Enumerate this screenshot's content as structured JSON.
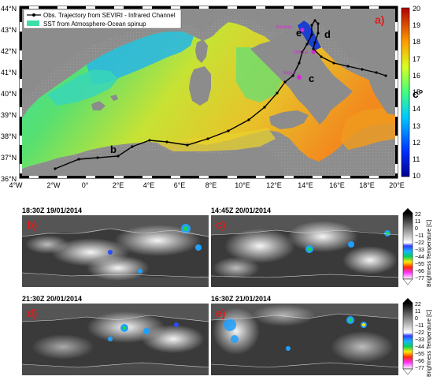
{
  "main_map": {
    "panel_letter": "a)",
    "legend": [
      {
        "label": "Obs. Trajectory from SEVIRI - Infrared Channel",
        "kind": "line-marker"
      },
      {
        "label": "SST from Atmosphere-Ocean spinup",
        "kind": "swatch"
      }
    ],
    "lat_ticks": [
      "44°N",
      "43°N",
      "42°N",
      "41°N",
      "40°N",
      "39°N",
      "38°N",
      "37°N",
      "36°N"
    ],
    "lon_ticks": [
      "4°W",
      "2°W",
      "0°",
      "2°E",
      "4°E",
      "6°E",
      "8°E",
      "10°E",
      "12°E",
      "14°E",
      "16°E",
      "18°E",
      "20°E"
    ],
    "colorbar": {
      "ticks": [
        "20",
        "19",
        "18",
        "17",
        "16",
        "15",
        "14",
        "13",
        "12",
        "11",
        "10"
      ],
      "unit": "c°"
    },
    "track_labels": [
      "b",
      "c",
      "d",
      "e"
    ],
    "cities": [
      "Ancona",
      "Ortona",
      "Napoli"
    ],
    "colors": {
      "sea_cold": "#1e5bd6",
      "sea_mid": "#39d39a",
      "sea_warm": "#e7e22c",
      "sea_hot": "#f08a1c",
      "land": "#8e8e8e",
      "track": "#000000",
      "city": "#d926d9",
      "panel_letter": "#e01c1c"
    }
  },
  "ir_panels": [
    {
      "timestamp": "18:30Z 19/01/2014",
      "letter": "b)"
    },
    {
      "timestamp": "14:45Z 20/01/2014",
      "letter": "c)"
    },
    {
      "timestamp": "21:30Z 20/01/2014",
      "letter": "d)"
    },
    {
      "timestamp": "16:30Z 21/01/2014",
      "letter": "e)"
    }
  ],
  "bt_colorbar": {
    "ticks": [
      "22",
      "11",
      "0",
      "−11",
      "−22",
      "−33",
      "−44",
      "−55",
      "−66",
      "−77"
    ],
    "label": "Brightness Temperature [C]"
  }
}
